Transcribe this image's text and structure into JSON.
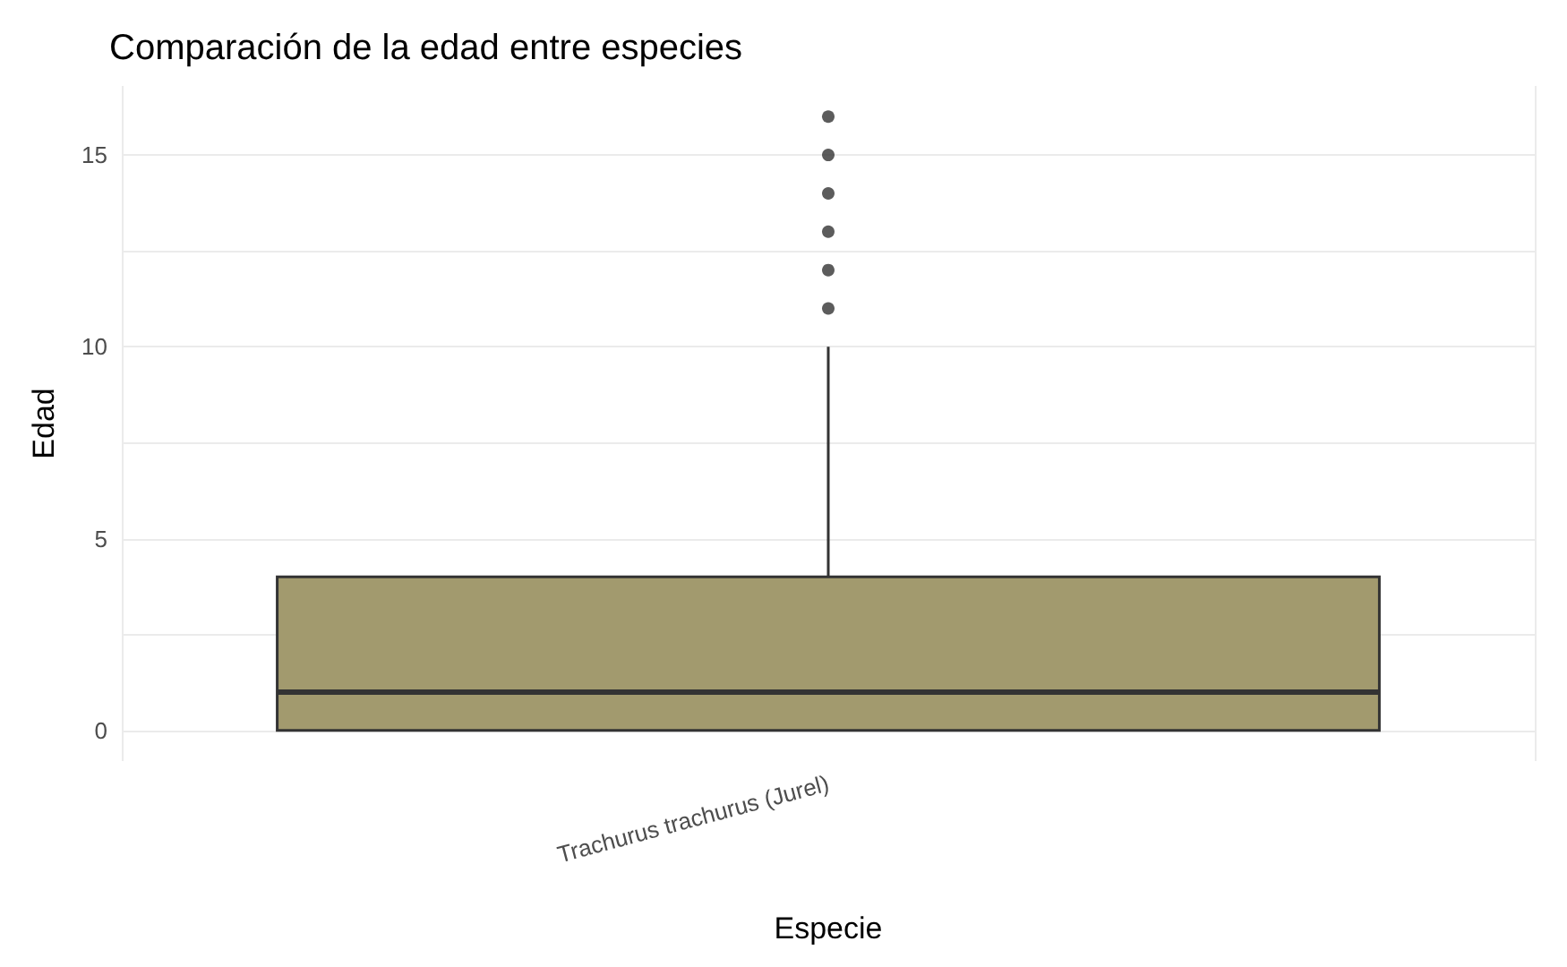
{
  "chart_data": {
    "type": "box",
    "title": "Comparación de la edad entre especies",
    "xlabel": "Especie",
    "ylabel": "Edad",
    "categories": [
      "Trachurus trachurus (Jurel)"
    ],
    "boxes": [
      {
        "low": 0,
        "q1": 0,
        "median": 1,
        "q3": 4,
        "high": 10,
        "outliers": [
          11,
          12,
          13,
          14,
          15,
          16
        ]
      }
    ],
    "color": "#a29a6e",
    "ylim": [
      -0.8,
      16.8
    ],
    "yticks": [
      0,
      {
        "value": 2.5,
        "label": null
      },
      5,
      {
        "value": 7.5,
        "label": null
      },
      10,
      {
        "value": 12.5,
        "label": null
      },
      15
    ],
    "grid": true
  }
}
